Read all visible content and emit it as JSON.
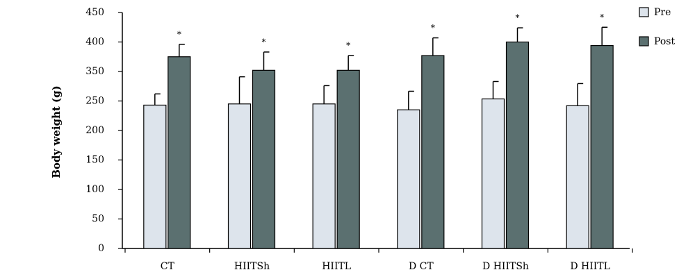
{
  "chart_data": {
    "type": "bar",
    "y_label": "Body weight (g)",
    "categories": [
      "CT",
      "HIITSh",
      "HIITL",
      "D CT",
      "D HIITSh",
      "D HIITL"
    ],
    "series": [
      {
        "name": "Pre",
        "color": "#dde4ec",
        "values": [
          243,
          245,
          245,
          235,
          257,
          242
        ],
        "errors": [
          31,
          87,
          57,
          48,
          59,
          67
        ]
      },
      {
        "name": "Post",
        "color": "#5b7070",
        "values": [
          375,
          352,
          352,
          377,
          400,
          394
        ],
        "errors": [
          21,
          31,
          25,
          30,
          24,
          31
        ],
        "annotations": [
          "*",
          "*",
          "*",
          "*",
          "*",
          "*"
        ]
      }
    ],
    "ylim": [
      0,
      450
    ],
    "yticks": [
      0,
      50,
      100,
      150,
      200,
      250,
      350,
      400,
      450
    ],
    "legend": "right"
  }
}
